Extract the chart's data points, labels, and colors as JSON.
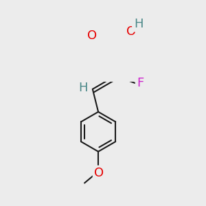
{
  "background_color": "#ececec",
  "bond_color": "#1a1a1a",
  "atom_colors": {
    "O": "#e60000",
    "F": "#cc22cc",
    "H": "#4a8888",
    "C": "#1a1a1a"
  },
  "lw": 1.5,
  "font_size": 13
}
